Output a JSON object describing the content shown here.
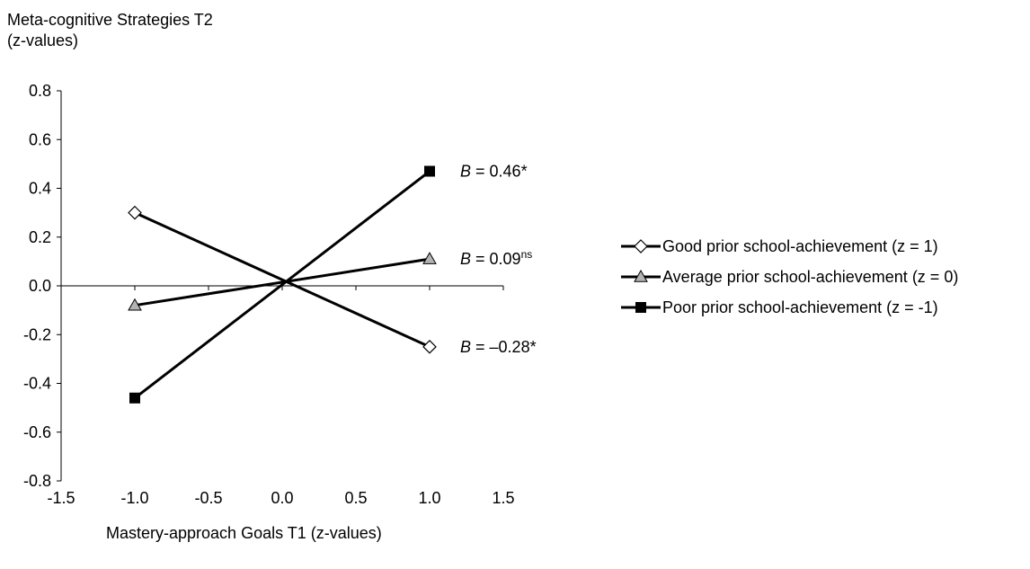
{
  "chart_data": {
    "type": "line",
    "ylabel_lines": [
      "Meta-cognitive Strategies T2",
      "(z-values)"
    ],
    "xlabel": "Mastery-approach Goals T1 (z-values)",
    "xlim": [
      -1.5,
      1.5
    ],
    "ylim": [
      -0.8,
      0.8
    ],
    "x_ticks": [
      "-1.5",
      "-1.0",
      "-0.5",
      "0.0",
      "0.5",
      "1.0",
      "1.5"
    ],
    "y_ticks": [
      "0.8",
      "0.6",
      "0.4",
      "0.2",
      "0.0",
      "-0.2",
      "-0.4",
      "-0.6",
      "-0.8"
    ],
    "grid": false,
    "legend_position": "right",
    "series": [
      {
        "name": "Good prior school-achievement (z = 1)",
        "marker": "diamond-open",
        "x": [
          -1.0,
          1.0
        ],
        "y": [
          0.3,
          -0.25
        ],
        "annotation": {
          "prefix": "B",
          "text": " = –0.28*",
          "sup": ""
        }
      },
      {
        "name": "Average prior school-achievement (z = 0)",
        "marker": "triangle-gray",
        "x": [
          -1.0,
          1.0
        ],
        "y": [
          -0.08,
          0.11
        ],
        "annotation": {
          "prefix": "B",
          "text": " = 0.09",
          "sup": "ns"
        }
      },
      {
        "name": "Poor prior school-achievement (z = -1)",
        "marker": "square-filled",
        "x": [
          -1.0,
          1.0
        ],
        "y": [
          -0.46,
          0.47
        ],
        "annotation": {
          "prefix": "B",
          "text": " = 0.46*",
          "sup": ""
        }
      }
    ]
  },
  "colors": {
    "line": "#000000",
    "triangle_fill": "#b3b3b3",
    "open_fill": "#ffffff"
  }
}
